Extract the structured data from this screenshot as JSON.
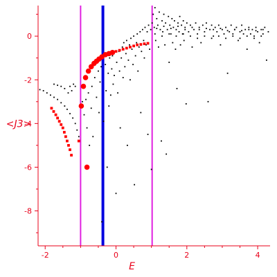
{
  "chart_data": {
    "type": "scatter",
    "xlabel": "E",
    "ylabel": "<J3>",
    "xlim": [
      -2.2,
      4.35
    ],
    "ylim": [
      -9.6,
      1.4
    ],
    "x_ticks": [
      -2,
      0,
      2,
      4
    ],
    "x_tick_labels": [
      "-2",
      "0",
      "2",
      "4"
    ],
    "y_ticks": [
      0,
      -2,
      -4,
      -6,
      -8
    ],
    "y_tick_labels": [
      "0",
      "-2",
      "-4",
      "-6",
      "-8"
    ],
    "grid": false,
    "colors": {
      "axis": "#e8001a",
      "black_points": "#000000",
      "red_points": "#ff0000",
      "magenta_line": "#e020e0",
      "blue_line": "#0000e0"
    },
    "vertical_lines": [
      {
        "x": -1.0,
        "color": "magenta"
      },
      {
        "x": -0.37,
        "color": "blue"
      },
      {
        "x": 1.02,
        "color": "magenta"
      }
    ],
    "series": [
      {
        "color": "black",
        "points": [
          [
            -2.15,
            -2.45
          ],
          [
            -2.05,
            -2.5
          ],
          [
            -1.95,
            -2.6
          ],
          [
            -1.85,
            -2.7
          ],
          [
            -1.75,
            -2.8
          ],
          [
            -1.65,
            -2.9
          ],
          [
            -1.55,
            -3.05
          ],
          [
            -1.45,
            -3.2
          ],
          [
            -1.38,
            -3.35
          ],
          [
            -1.3,
            -3.55
          ],
          [
            -1.22,
            -3.75
          ],
          [
            -1.15,
            -4.0
          ],
          [
            -1.1,
            -4.3
          ],
          [
            -1.05,
            -4.6
          ],
          [
            -1.75,
            -2.2
          ],
          [
            -1.65,
            -2.25
          ],
          [
            -1.55,
            -2.3
          ],
          [
            -1.45,
            -2.4
          ],
          [
            -1.35,
            -2.6
          ],
          [
            -1.3,
            -2.3
          ],
          [
            -1.25,
            -2.5
          ],
          [
            -1.2,
            -2.2
          ],
          [
            -1.15,
            -2.3
          ],
          [
            -0.95,
            -3.0
          ],
          [
            -0.9,
            -3.6
          ],
          [
            -0.85,
            -2.9
          ],
          [
            -0.82,
            -4.2
          ],
          [
            -0.78,
            -2.6
          ],
          [
            -0.75,
            -5.0
          ],
          [
            -0.7,
            -3.3
          ],
          [
            -0.68,
            -2.3
          ],
          [
            -0.65,
            -4.6
          ],
          [
            -0.6,
            -1.9
          ],
          [
            -0.55,
            -2.8
          ],
          [
            -0.5,
            -1.6
          ],
          [
            -0.48,
            -3.5
          ],
          [
            -0.45,
            -2.1
          ],
          [
            -0.42,
            -1.4
          ],
          [
            -0.4,
            -8.5
          ],
          [
            -0.35,
            -3.9
          ],
          [
            -0.3,
            -1.3
          ],
          [
            -0.28,
            -2.5
          ],
          [
            -0.25,
            -6.0
          ],
          [
            -0.22,
            -1.7
          ],
          [
            -0.2,
            -3.2
          ],
          [
            -0.18,
            -1.0
          ],
          [
            -0.15,
            -2.7
          ],
          [
            -0.12,
            -1.5
          ],
          [
            -0.1,
            -0.9
          ],
          [
            -0.08,
            -2.2
          ],
          [
            -0.05,
            -1.8
          ],
          [
            0.0,
            -7.2
          ],
          [
            0.02,
            -1.2
          ],
          [
            0.05,
            -2.6
          ],
          [
            0.08,
            -0.7
          ],
          [
            0.1,
            -1.6
          ],
          [
            0.12,
            -4.2
          ],
          [
            0.15,
            -1.0
          ],
          [
            0.18,
            -0.5
          ],
          [
            0.2,
            -1.9
          ],
          [
            0.22,
            -0.3
          ],
          [
            0.25,
            -1.4
          ],
          [
            0.28,
            -0.8
          ],
          [
            0.3,
            -0.2
          ],
          [
            0.32,
            -5.0
          ],
          [
            0.35,
            -1.1
          ],
          [
            0.38,
            -0.4
          ],
          [
            0.4,
            -2.0
          ],
          [
            0.42,
            -0.1
          ],
          [
            0.45,
            -0.6
          ],
          [
            0.48,
            -1.3
          ],
          [
            0.5,
            0.0
          ],
          [
            0.52,
            -6.8
          ],
          [
            0.55,
            -0.9
          ],
          [
            0.58,
            -0.3
          ],
          [
            0.6,
            0.1
          ],
          [
            0.62,
            -1.6
          ],
          [
            0.65,
            -0.5
          ],
          [
            0.68,
            0.2
          ],
          [
            0.7,
            -3.5
          ],
          [
            0.72,
            -0.7
          ],
          [
            0.75,
            0.3
          ],
          [
            0.78,
            -0.2
          ],
          [
            0.8,
            -1.0
          ],
          [
            0.82,
            0.4
          ],
          [
            0.85,
            -0.4
          ],
          [
            0.88,
            0.2
          ],
          [
            0.9,
            -4.5
          ],
          [
            0.92,
            0.5
          ],
          [
            0.95,
            -0.6
          ],
          [
            0.98,
            0.3
          ],
          [
            1.0,
            -6.1
          ],
          [
            1.02,
            0.6
          ],
          [
            1.05,
            1.0
          ],
          [
            1.08,
            0.4
          ],
          [
            1.1,
            1.3
          ],
          [
            1.12,
            -0.2
          ],
          [
            1.15,
            0.8
          ],
          [
            1.18,
            0.5
          ],
          [
            1.2,
            -0.5
          ],
          [
            1.22,
            1.1
          ],
          [
            1.25,
            0.3
          ],
          [
            1.28,
            -4.8
          ],
          [
            1.3,
            0.7
          ],
          [
            1.32,
            0.2
          ],
          [
            1.35,
            1.0
          ],
          [
            1.38,
            -0.4
          ],
          [
            1.4,
            0.6
          ],
          [
            1.42,
            -5.4
          ],
          [
            1.45,
            0.3
          ],
          [
            1.48,
            0.9
          ],
          [
            1.5,
            -1.2
          ],
          [
            1.52,
            0.5
          ],
          [
            1.55,
            0.1
          ],
          [
            1.58,
            0.8
          ],
          [
            1.6,
            -0.3
          ],
          [
            1.62,
            0.4
          ],
          [
            1.65,
            0.7
          ],
          [
            1.68,
            -0.6
          ],
          [
            1.7,
            0.3
          ],
          [
            1.72,
            -2.4
          ],
          [
            1.75,
            0.6
          ],
          [
            1.78,
            0.2
          ],
          [
            1.8,
            0.9
          ],
          [
            1.82,
            -0.4
          ],
          [
            1.85,
            0.5
          ],
          [
            1.88,
            0.1
          ],
          [
            1.9,
            0.7
          ],
          [
            1.92,
            -0.2
          ],
          [
            1.95,
            0.4
          ],
          [
            1.98,
            -3.1
          ],
          [
            2.0,
            0.6
          ],
          [
            2.05,
            0.2
          ],
          [
            2.1,
            0.5
          ],
          [
            2.15,
            -0.5
          ],
          [
            2.2,
            0.3
          ],
          [
            2.25,
            0.6
          ],
          [
            2.3,
            0.1
          ],
          [
            2.35,
            0.4
          ],
          [
            2.4,
            -0.3
          ],
          [
            2.45,
            0.5
          ],
          [
            2.5,
            0.2
          ],
          [
            2.55,
            0.6
          ],
          [
            2.6,
            -3.0
          ],
          [
            2.65,
            0.3
          ],
          [
            2.7,
            0.5
          ],
          [
            2.75,
            0.0
          ],
          [
            2.8,
            0.4
          ],
          [
            2.85,
            0.2
          ],
          [
            2.9,
            0.5
          ],
          [
            2.95,
            -0.4
          ],
          [
            3.0,
            0.3
          ],
          [
            3.05,
            0.1
          ],
          [
            3.1,
            0.4
          ],
          [
            3.15,
            -1.7
          ],
          [
            3.2,
            0.2
          ],
          [
            3.25,
            0.5
          ],
          [
            3.3,
            0.0
          ],
          [
            3.35,
            0.3
          ],
          [
            3.4,
            0.4
          ],
          [
            3.45,
            -0.2
          ],
          [
            3.5,
            0.2
          ],
          [
            3.55,
            0.5
          ],
          [
            3.6,
            0.1
          ],
          [
            3.65,
            0.3
          ],
          [
            3.7,
            -0.6
          ],
          [
            3.75,
            0.4
          ],
          [
            3.8,
            0.1
          ],
          [
            3.85,
            0.3
          ],
          [
            3.9,
            0.0
          ],
          [
            3.95,
            0.4
          ],
          [
            4.0,
            0.2
          ],
          [
            4.05,
            -0.3
          ],
          [
            4.1,
            0.3
          ],
          [
            4.15,
            0.1
          ],
          [
            4.2,
            0.4
          ],
          [
            4.25,
            -1.1
          ],
          [
            4.3,
            0.2
          ],
          [
            1.1,
            0.1
          ],
          [
            1.3,
            0.0
          ],
          [
            1.5,
            0.1
          ],
          [
            1.7,
            0.0
          ],
          [
            1.9,
            0.1
          ],
          [
            2.1,
            0.0
          ],
          [
            2.3,
            -0.1
          ],
          [
            2.5,
            0.0
          ],
          [
            2.7,
            -0.1
          ],
          [
            2.9,
            0.0
          ],
          [
            3.1,
            -0.1
          ],
          [
            3.3,
            0.1
          ],
          [
            3.5,
            -0.1
          ],
          [
            3.7,
            0.0
          ],
          [
            3.9,
            -0.1
          ],
          [
            4.1,
            0.0
          ],
          [
            1.15,
            0.35
          ],
          [
            1.35,
            0.45
          ],
          [
            1.55,
            0.35
          ],
          [
            1.75,
            0.45
          ],
          [
            1.95,
            0.3
          ],
          [
            2.15,
            0.4
          ],
          [
            2.35,
            0.3
          ],
          [
            2.55,
            0.35
          ],
          [
            2.75,
            0.3
          ],
          [
            2.95,
            0.35
          ],
          [
            3.15,
            0.25
          ],
          [
            3.35,
            0.3
          ],
          [
            3.55,
            0.25
          ],
          [
            3.75,
            0.3
          ],
          [
            3.95,
            0.25
          ],
          [
            4.15,
            0.3
          ]
        ]
      },
      {
        "color": "red",
        "points": [
          [
            -1.82,
            -3.3
          ],
          [
            -1.76,
            -3.45
          ],
          [
            -1.7,
            -3.6
          ],
          [
            -1.65,
            -3.75
          ],
          [
            -1.6,
            -3.9
          ],
          [
            -1.55,
            -4.05
          ],
          [
            -1.5,
            -4.2
          ],
          [
            -1.46,
            -4.4
          ],
          [
            -1.42,
            -4.6
          ],
          [
            -1.38,
            -4.8
          ],
          [
            -1.34,
            -5.0
          ],
          [
            -1.3,
            -5.2
          ],
          [
            -1.26,
            -5.45
          ],
          [
            -1.05,
            -4.8
          ],
          [
            -0.98,
            -3.2
          ],
          [
            -0.92,
            -2.3
          ],
          [
            -0.86,
            -1.9
          ],
          [
            -0.82,
            -6.0
          ],
          [
            -0.78,
            -1.6
          ],
          [
            -0.7,
            -1.4
          ],
          [
            -0.62,
            -1.25
          ],
          [
            -0.55,
            -1.15
          ],
          [
            -0.48,
            -1.05
          ],
          [
            -0.4,
            -0.95
          ],
          [
            -0.3,
            -0.85
          ],
          [
            -0.2,
            -0.8
          ],
          [
            -0.1,
            -0.75
          ],
          [
            0.0,
            -0.7
          ],
          [
            0.1,
            -0.65
          ],
          [
            0.2,
            -0.6
          ],
          [
            0.3,
            -0.55
          ],
          [
            0.4,
            -0.5
          ],
          [
            0.5,
            -0.45
          ],
          [
            0.6,
            -0.4
          ],
          [
            0.7,
            -0.38
          ],
          [
            0.8,
            -0.35
          ],
          [
            0.9,
            -0.33
          ]
        ]
      }
    ]
  }
}
